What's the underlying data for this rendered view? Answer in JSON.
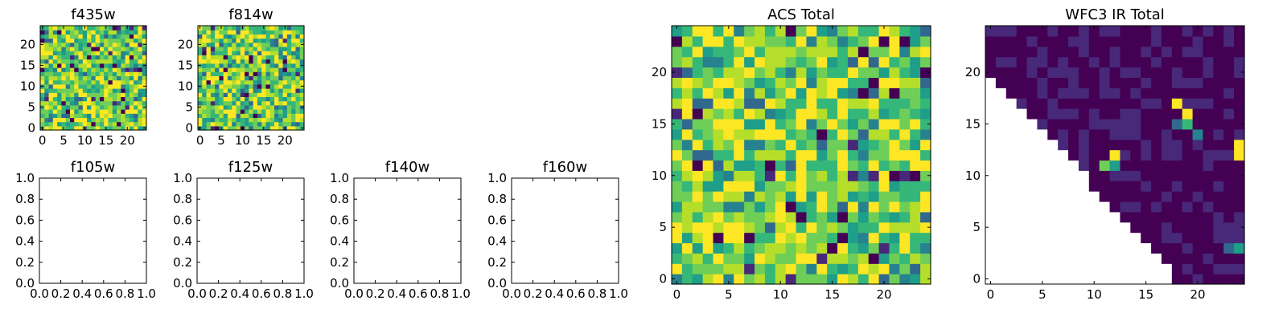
{
  "chart_data": [
    {
      "type": "heatmap",
      "title": "f435w",
      "grid_size": 25,
      "xlim": [
        -0.5,
        24.5
      ],
      "ylim": [
        -0.5,
        24.5
      ],
      "xticks": [
        0,
        5,
        10,
        15,
        20
      ],
      "yticks": [
        0,
        5,
        10,
        15,
        20
      ],
      "colormap": "viridis",
      "values_description": "noisy values, mostly mid-to-high (green/yellow) with scattered low (purple) pixels"
    },
    {
      "type": "heatmap",
      "title": "f814w",
      "grid_size": 25,
      "xlim": [
        -0.5,
        24.5
      ],
      "ylim": [
        -0.5,
        24.5
      ],
      "xticks": [
        0,
        5,
        10,
        15,
        20
      ],
      "yticks": [
        0,
        5,
        10,
        15,
        20
      ],
      "colormap": "viridis",
      "values_description": "noisy values, mostly mid-to-high (green/yellow) with scattered low (purple) pixels"
    },
    {
      "type": "empty",
      "title": "f105w",
      "xlim": [
        0,
        1
      ],
      "ylim": [
        0,
        1
      ],
      "xticks": [
        "0.0",
        "0.2",
        "0.4",
        "0.6",
        "0.8",
        "1.0"
      ],
      "yticks": [
        "0.0",
        "0.2",
        "0.4",
        "0.6",
        "0.8",
        "1.0"
      ]
    },
    {
      "type": "empty",
      "title": "f125w",
      "xlim": [
        0,
        1
      ],
      "ylim": [
        0,
        1
      ],
      "xticks": [
        "0.0",
        "0.2",
        "0.4",
        "0.6",
        "0.8",
        "1.0"
      ],
      "yticks": [
        "0.0",
        "0.2",
        "0.4",
        "0.6",
        "0.8",
        "1.0"
      ]
    },
    {
      "type": "empty",
      "title": "f140w",
      "xlim": [
        0,
        1
      ],
      "ylim": [
        0,
        1
      ],
      "xticks": [
        "0.0",
        "0.2",
        "0.4",
        "0.6",
        "0.8",
        "1.0"
      ],
      "yticks": [
        "0.0",
        "0.2",
        "0.4",
        "0.6",
        "0.8",
        "1.0"
      ]
    },
    {
      "type": "empty",
      "title": "f160w",
      "xlim": [
        0,
        1
      ],
      "ylim": [
        0,
        1
      ],
      "xticks": [
        "0.0",
        "0.2",
        "0.4",
        "0.6",
        "0.8",
        "1.0"
      ],
      "yticks": [
        "0.0",
        "0.2",
        "0.4",
        "0.6",
        "0.8",
        "1.0"
      ]
    },
    {
      "type": "heatmap",
      "title": "ACS Total",
      "grid_size": 25,
      "xlim": [
        -0.5,
        24.5
      ],
      "ylim": [
        -0.5,
        24.5
      ],
      "xticks": [
        0,
        5,
        10,
        15,
        20
      ],
      "yticks": [
        0,
        5,
        10,
        15,
        20
      ],
      "colormap": "viridis",
      "values_description": "noisy values, mostly green/yellow with a few purple pixels"
    },
    {
      "type": "heatmap",
      "title": "WFC3 IR Total",
      "grid_size": 25,
      "xlim": [
        -0.5,
        24.5
      ],
      "ylim": [
        -0.5,
        24.5
      ],
      "xticks": [
        0,
        5,
        10,
        15,
        20
      ],
      "yticks": [
        0,
        5,
        10,
        15,
        20
      ],
      "colormap": "viridis",
      "masked_region": "lower-left triangle (below anti-diagonal) is blank/white",
      "values_description": "mostly low (dark purple) with a few bright yellow/green hot pixels near x=12,y=12; x=18-20,y=14-17; x=24,y=12; x=24,y=3"
    }
  ]
}
